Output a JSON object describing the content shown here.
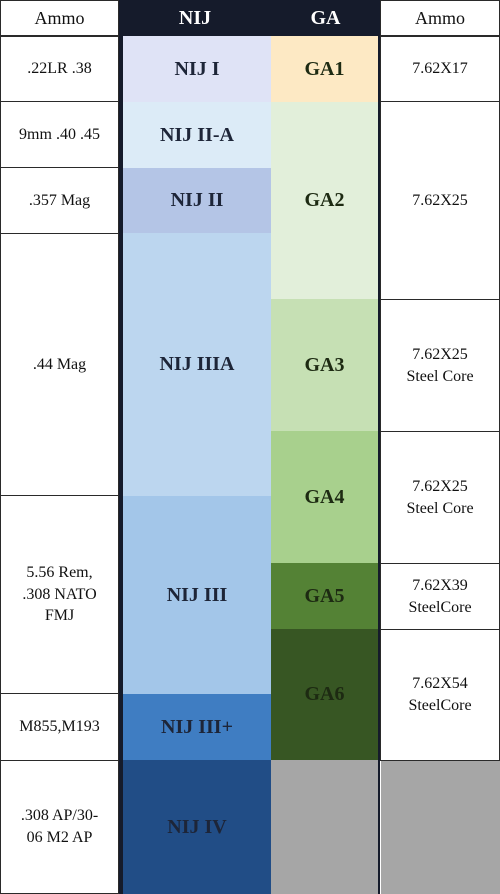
{
  "headers": {
    "ammo_left": "Ammo",
    "nij": "NIJ",
    "ga": "GA",
    "ammo_right": "Ammo"
  },
  "nij_levels": [
    {
      "label": "NIJ I",
      "color": "#dfe3f6"
    },
    {
      "label": "NIJ II-A",
      "color": "#dcebf7"
    },
    {
      "label": "NIJ II",
      "color": "#b4c5e6"
    },
    {
      "label": "NIJ IIIA",
      "color": "#bcd6ef"
    },
    {
      "label": "NIJ III",
      "color": "#a3c6e9"
    },
    {
      "label": "NIJ III+",
      "color": "#3f7dc2"
    },
    {
      "label": "NIJ IV",
      "color": "#214d86"
    }
  ],
  "ga_levels": [
    {
      "label": "GA1",
      "color": "#fde9c4"
    },
    {
      "label": "GA2",
      "color": "#e2efda"
    },
    {
      "label": "GA3",
      "color": "#c6e0b4"
    },
    {
      "label": "GA4",
      "color": "#a8d08d"
    },
    {
      "label": "GA5",
      "color": "#548235"
    },
    {
      "label": "GA6",
      "color": "#375623"
    },
    {
      "label": "",
      "color": "#a6a6a6"
    }
  ],
  "ammo_left": [
    ".22LR .38",
    "9mm .40 .45",
    ".357 Mag",
    ".44 Mag",
    "5.56 Rem,\n.308 NATO\nFMJ",
    "M855,M193",
    ".308 AP/30-\n06 M2 AP"
  ],
  "ammo_right": [
    "7.62X17",
    "7.62X25",
    "7.62X25\nSteel Core",
    "7.62X25\nSteel Core",
    "7.62X39\nSteelCore",
    "7.62X54\nSteelCore",
    ""
  ],
  "colors": {
    "header_dark": "#151b2b",
    "grey_right": "#a6a6a6"
  }
}
